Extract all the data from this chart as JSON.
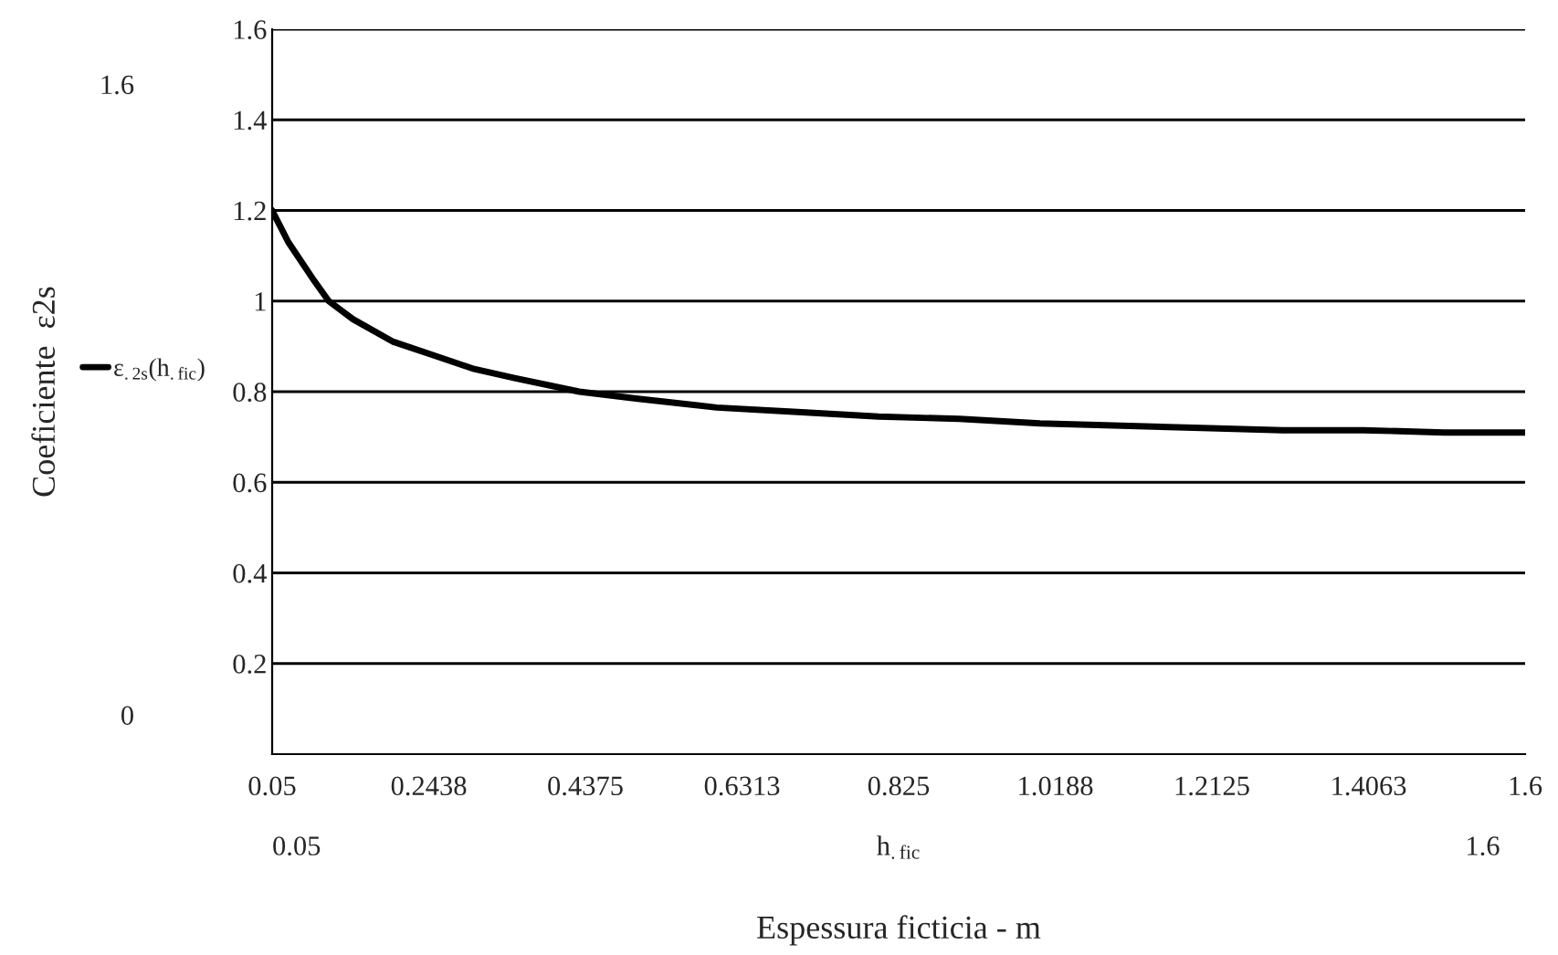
{
  "chart_data": {
    "type": "line",
    "xlabel": "Espessura ficticia - m",
    "x": [
      0.05,
      0.07,
      0.1,
      0.12,
      0.15,
      0.2,
      0.25,
      0.3,
      0.35,
      0.43,
      0.5,
      0.6,
      0.7,
      0.8,
      0.9,
      1.0,
      1.1,
      1.2,
      1.3,
      1.4,
      1.5,
      1.6
    ],
    "series": [
      {
        "name": "ε$_{.2s}$(h$_{.fic}$)",
        "color": "#000000",
        "values": [
          1.2,
          1.13,
          1.05,
          1.0,
          0.96,
          0.91,
          0.88,
          0.85,
          0.83,
          0.8,
          0.785,
          0.765,
          0.755,
          0.745,
          0.74,
          0.73,
          0.725,
          0.72,
          0.715,
          0.715,
          0.71,
          0.71
        ]
      }
    ],
    "xlim": [
      0.05,
      1.6
    ],
    "xticks": [
      0.05,
      0.2438,
      0.4375,
      0.6313,
      0.825,
      1.0188,
      1.2125,
      1.4063,
      1.6
    ],
    "ylim": [
      0,
      1.6
    ],
    "yticks": [
      0.2,
      0.4,
      0.6,
      0.8,
      1,
      1.2,
      1.4,
      1.6
    ],
    "grid": "y",
    "legend": "left",
    "line_style": "solid",
    "marker": "none",
    "annotations": [
      "1.6",
      "0",
      "0.05",
      "1.6",
      "h$_{.fic}$",
      "Coeficiente  ε2s"
    ]
  }
}
